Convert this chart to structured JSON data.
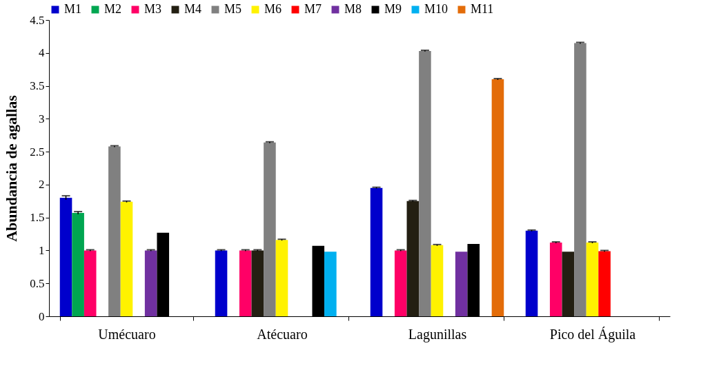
{
  "chart_data": {
    "type": "bar",
    "ylabel": "Abundancia  de agallas",
    "categories": [
      "Umécuaro",
      "Atécuaro",
      "Lagunillas",
      "Pico del Águila"
    ],
    "series": [
      {
        "name": "M1",
        "color": "#0000cc",
        "values": [
          1.8,
          1.0,
          1.95,
          1.3
        ],
        "errors": [
          0.03,
          0.01,
          0.01,
          0.01
        ]
      },
      {
        "name": "M2",
        "color": "#00a651",
        "values": [
          1.57,
          null,
          null,
          null
        ],
        "errors": [
          0.02,
          null,
          null,
          null
        ]
      },
      {
        "name": "M3",
        "color": "#ff0066",
        "values": [
          1.0,
          1.0,
          1.0,
          1.12
        ],
        "errors": [
          0.01,
          0.01,
          0.01,
          0.01
        ]
      },
      {
        "name": "M4",
        "color": "#231f12",
        "values": [
          null,
          1.0,
          1.75,
          0.98
        ],
        "errors": [
          null,
          0.01,
          0.01,
          null
        ]
      },
      {
        "name": "M5",
        "color": "#808080",
        "values": [
          2.58,
          2.64,
          4.03,
          4.15
        ],
        "errors": [
          0.01,
          0.01,
          0.01,
          0.01
        ]
      },
      {
        "name": "M6",
        "color": "#fff200",
        "values": [
          1.74,
          1.16,
          1.08,
          1.12
        ],
        "errors": [
          0.01,
          0.01,
          0.01,
          0.01
        ]
      },
      {
        "name": "M7",
        "color": "#ff0000",
        "values": [
          null,
          null,
          null,
          0.99
        ],
        "errors": [
          null,
          null,
          null,
          0.01
        ]
      },
      {
        "name": "M8",
        "color": "#7030a0",
        "values": [
          1.0,
          null,
          0.98,
          null
        ],
        "errors": [
          0.01,
          null,
          null,
          null
        ]
      },
      {
        "name": "M9",
        "color": "#000000",
        "values": [
          1.27,
          1.07,
          1.1,
          null
        ]
      },
      {
        "name": "M10",
        "color": "#00b0f0",
        "values": [
          null,
          0.98,
          null,
          null
        ]
      },
      {
        "name": "M11",
        "color": "#e36c09",
        "values": [
          null,
          null,
          3.6,
          null
        ],
        "errors": [
          null,
          null,
          0.01,
          null
        ]
      }
    ],
    "ylim": [
      0,
      4.5
    ],
    "yticks": [
      0,
      0.5,
      1,
      1.5,
      2,
      2.5,
      3,
      3.5,
      4,
      4.5
    ],
    "grid": false,
    "legend": "top"
  }
}
